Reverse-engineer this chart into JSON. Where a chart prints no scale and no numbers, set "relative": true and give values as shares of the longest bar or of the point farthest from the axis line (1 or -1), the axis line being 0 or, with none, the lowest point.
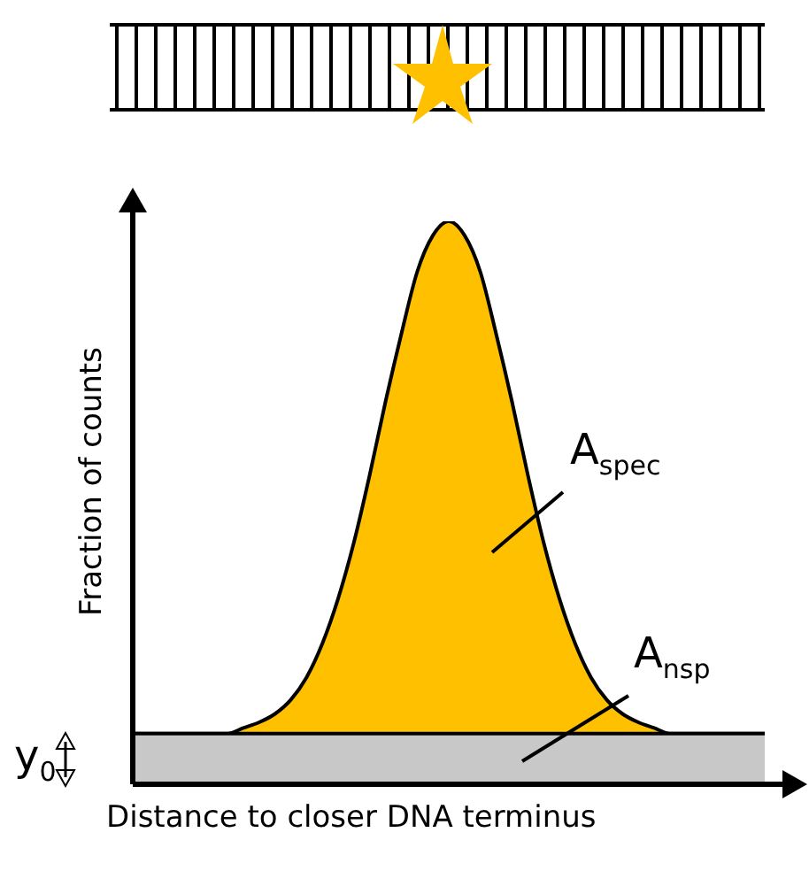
{
  "chart_data": {
    "type": "area",
    "relative": true,
    "xlabel": "Distance to closer DNA terminus",
    "ylabel": "Fraction of counts",
    "categories": [
      null,
      null,
      null,
      null,
      null,
      null,
      null,
      null,
      null,
      null,
      null,
      null,
      null,
      null,
      null,
      null,
      null,
      null,
      null,
      null,
      null,
      null,
      null,
      null,
      null,
      null,
      null,
      null,
      null,
      null,
      null,
      null,
      null,
      null,
      null,
      null,
      null,
      null,
      null,
      null,
      null
    ],
    "series": [
      {
        "color": "#c8c8c8",
        "values": [
          0.09,
          0.09,
          0.09,
          0.09,
          0.09,
          0.09,
          0.09,
          0.09,
          0.09,
          0.09,
          0.09,
          0.09,
          0.09,
          0.09,
          0.09,
          0.09,
          0.09,
          0.09,
          0.09,
          0.09,
          0.09,
          0.09,
          0.09,
          0.09,
          0.09,
          0.09,
          0.09,
          0.09,
          0.09,
          0.09,
          0.09,
          0.09,
          0.09,
          0.09,
          0.09,
          0.09,
          0.09,
          0.09,
          0.09,
          0.09,
          0.09
        ]
      },
      {
        "color": "#ffc000",
        "values": [
          0.09,
          0.09,
          0.09,
          0.09,
          0.09,
          0.09,
          0.09,
          0.1,
          0.11,
          0.125,
          0.15,
          0.19,
          0.25,
          0.33,
          0.43,
          0.55,
          0.68,
          0.8,
          0.91,
          0.975,
          1,
          0.975,
          0.91,
          0.8,
          0.68,
          0.55,
          0.43,
          0.33,
          0.25,
          0.19,
          0.15,
          0.125,
          0.11,
          0.1,
          0.09,
          0.09,
          0.09,
          0.09,
          0.09,
          0.09,
          0.09
        ]
      }
    ],
    "annotations": [
      "A$_{spec}$",
      "A$_{nsp}$",
      "y$_{0}$"
    ]
  }
}
